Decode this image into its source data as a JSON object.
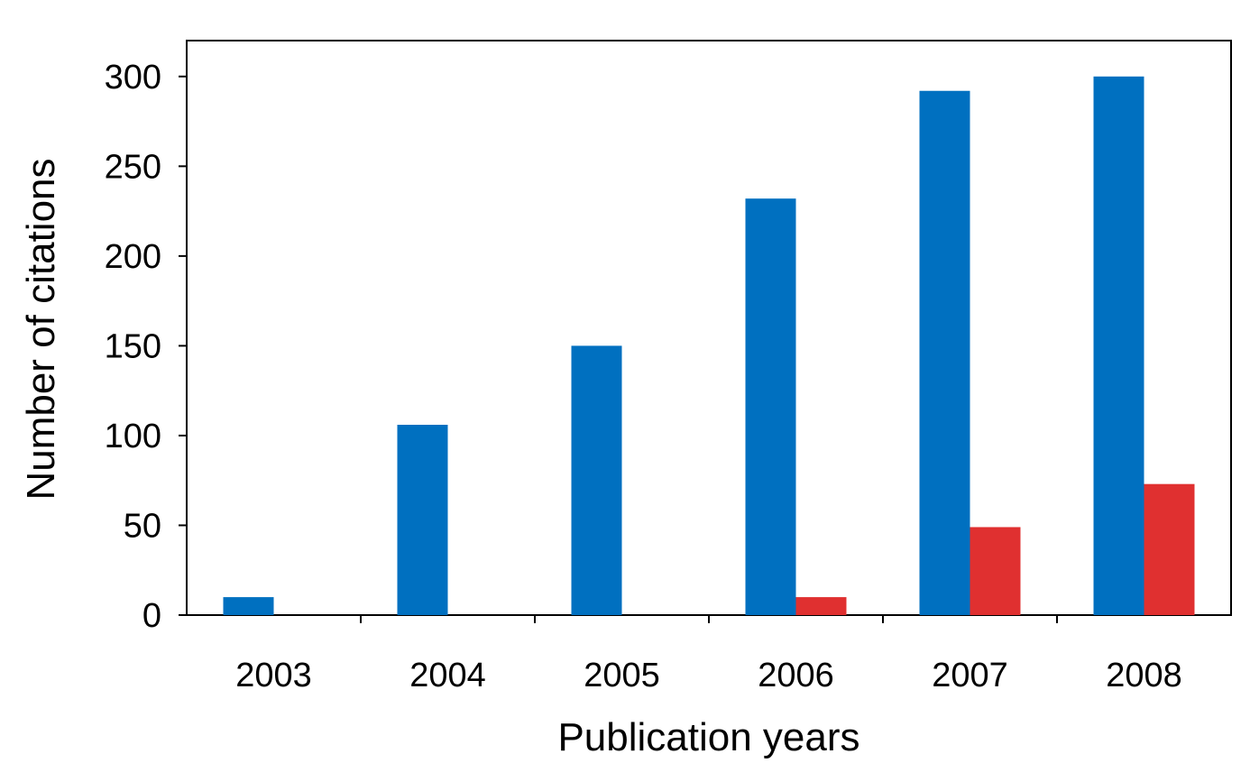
{
  "chart_data": {
    "type": "bar",
    "title": "",
    "xlabel": "Publication years",
    "ylabel": "Number of citations",
    "categories": [
      "2003",
      "2004",
      "2005",
      "2006",
      "2007",
      "2008"
    ],
    "series": [
      {
        "color": "#0070C0",
        "values": [
          10,
          106,
          150,
          232,
          292,
          300
        ]
      },
      {
        "color": "#E03030",
        "values": [
          0,
          0,
          0,
          10,
          49,
          73
        ]
      }
    ],
    "ylim": [
      0,
      320
    ],
    "yticks": [
      0,
      50,
      100,
      150,
      200,
      250,
      300
    ],
    "grid": false,
    "legend": "none"
  }
}
